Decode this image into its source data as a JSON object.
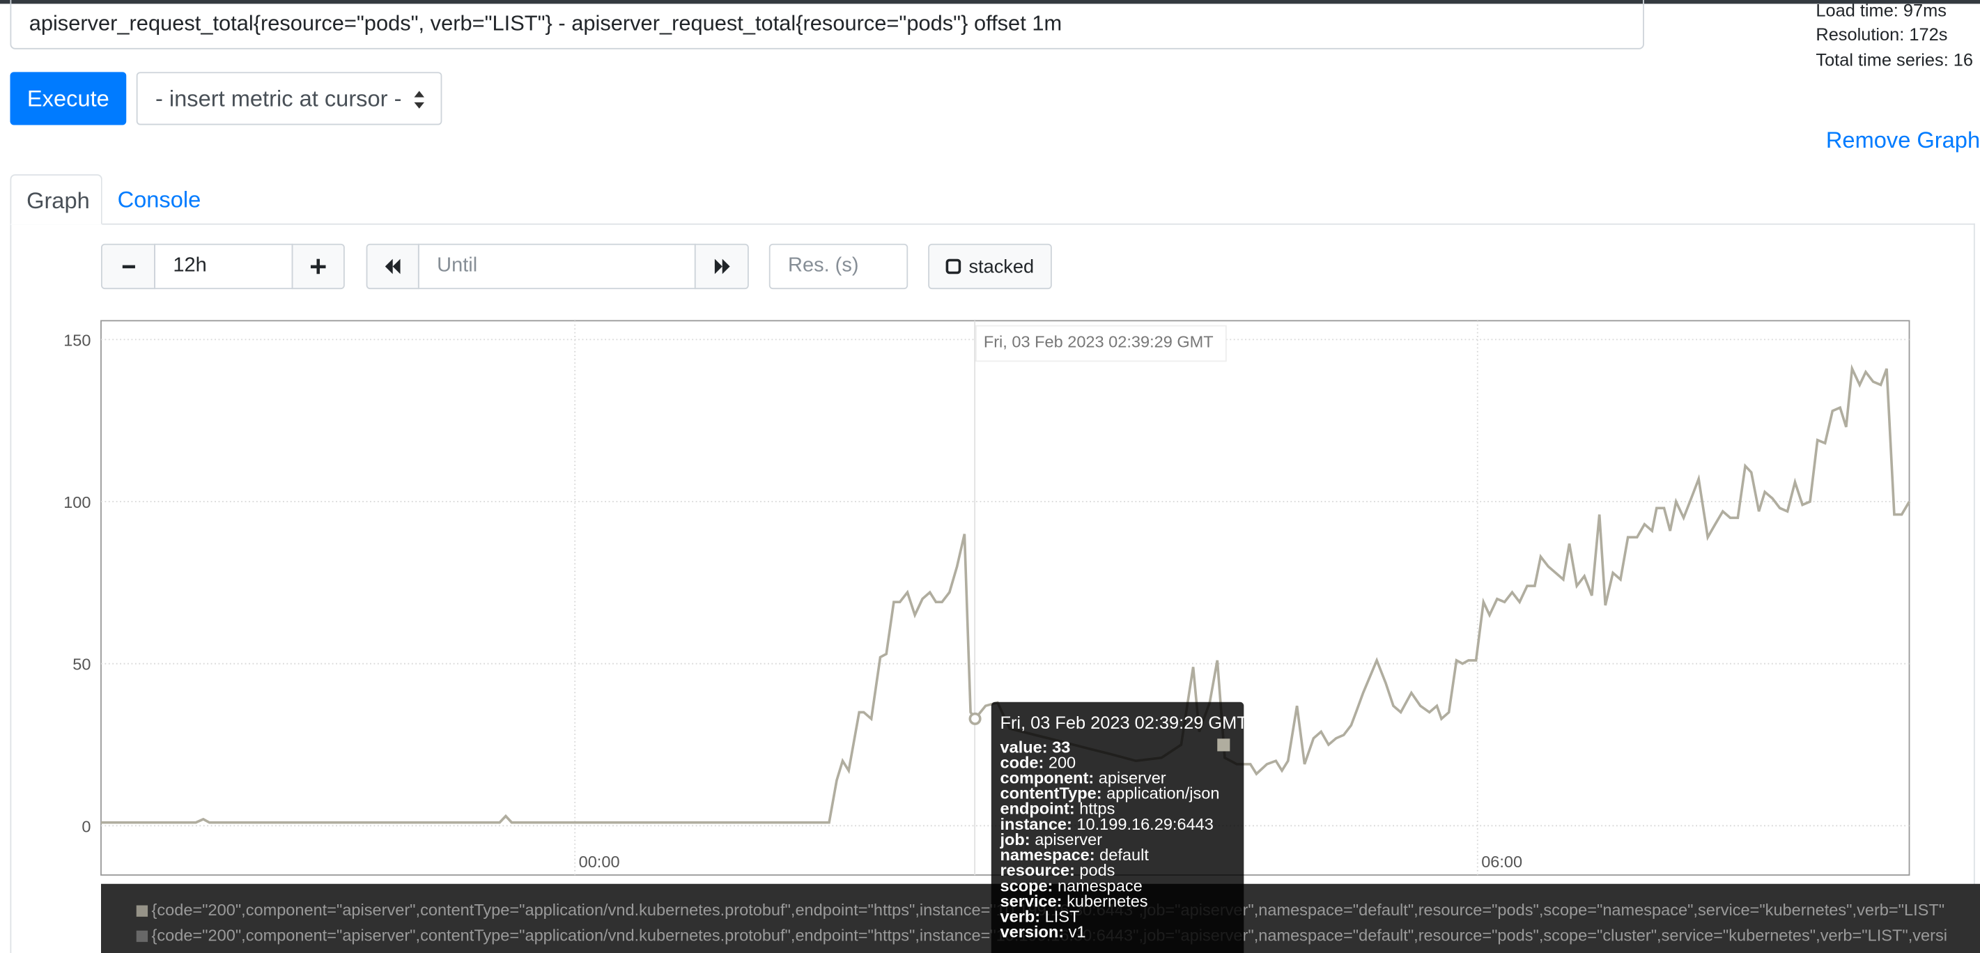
{
  "query": "apiserver_request_total{resource=\"pods\", verb=\"LIST\"} - apiserver_request_total{resource=\"pods\"} offset 1m",
  "stats": {
    "load_time": "Load time: 97ms",
    "resolution": "Resolution: 172s",
    "total_series": "Total time series: 16"
  },
  "execute": "Execute",
  "metric_select": "- insert metric at cursor -",
  "remove_graph": "Remove Graph",
  "tabs": [
    "Graph",
    "Console"
  ],
  "controls": {
    "range": "12h",
    "until": "Until",
    "resolution": "Res. (s)",
    "stacked": "stacked"
  },
  "chart_data": {
    "type": "line",
    "grid": true,
    "xlim": [
      -3.15,
      8.87
    ],
    "xticks": [
      {
        "value": 0,
        "label": "00:00"
      },
      {
        "value": 6,
        "label": "06:00"
      }
    ],
    "ylim": [
      -15.2,
      155.8
    ],
    "yticks": [
      0,
      50,
      100,
      150
    ],
    "crosshair_label": "Fri, 03 Feb 2023 02:39:29 GMT",
    "x": [
      -3.15,
      -2.52,
      -2.47,
      -2.43,
      -0.5,
      -0.46,
      -0.42,
      1.69,
      1.74,
      1.78,
      1.82,
      1.89,
      1.92,
      1.97,
      2.03,
      2.07,
      2.12,
      2.16,
      2.21,
      2.26,
      2.31,
      2.36,
      2.4,
      2.44,
      2.49,
      2.54,
      2.59,
      2.63,
      2.66,
      2.73,
      2.81,
      2.89,
      3.06,
      3.23,
      3.4,
      3.57,
      3.73,
      3.9,
      4.03,
      4.11,
      4.15,
      4.22,
      4.27,
      4.32,
      4.4,
      4.49,
      4.53,
      4.6,
      4.66,
      4.7,
      4.74,
      4.8,
      4.85,
      4.91,
      4.96,
      5.01,
      5.06,
      5.11,
      5.16,
      5.2,
      5.24,
      5.33,
      5.39,
      5.44,
      5.49,
      5.56,
      5.62,
      5.68,
      5.73,
      5.76,
      5.81,
      5.86,
      5.9,
      5.94,
      5.99,
      6.04,
      6.08,
      6.13,
      6.18,
      6.23,
      6.28,
      6.33,
      6.38,
      6.42,
      6.47,
      6.52,
      6.57,
      6.61,
      6.66,
      6.71,
      6.76,
      6.81,
      6.85,
      6.9,
      6.95,
      7.0,
      7.06,
      7.11,
      7.16,
      7.19,
      7.24,
      7.28,
      7.32,
      7.37,
      7.42,
      7.47,
      7.53,
      7.58,
      7.63,
      7.68,
      7.73,
      7.78,
      7.82,
      7.87,
      7.91,
      7.96,
      8.01,
      8.06,
      8.11,
      8.16,
      8.21,
      8.26,
      8.31,
      8.36,
      8.41,
      8.45,
      8.49,
      8.54,
      8.58,
      8.63,
      8.68,
      8.72,
      8.77,
      8.82,
      8.87
    ],
    "series": [
      {
        "name": "{code=\"200\",component=\"apiserver\",contentType=\"application/vnd.kubernetes.protobuf\",endpoint=\"https\",instance=\"10.199.16.30:6443\",job=\"apiserver\",namespace=\"default\",resource=\"pods\",scope=\"namespace\",service=\"kubernetes\",verb=\"LIST\"",
        "color": "#b0ad9f",
        "values": [
          1,
          1,
          2,
          1,
          1,
          3,
          1,
          1,
          14,
          20,
          17,
          35,
          35,
          33,
          52,
          53,
          69,
          69,
          72,
          65,
          70,
          72,
          69,
          69,
          72,
          80,
          90,
          35,
          33,
          37,
          38,
          30,
          28,
          26,
          24,
          22,
          20,
          21,
          25,
          49,
          29,
          38,
          51,
          21,
          19,
          19,
          16,
          19,
          20,
          17,
          20,
          37,
          19,
          27,
          29,
          25,
          27,
          28,
          31,
          36,
          41,
          51,
          44,
          37,
          35,
          41,
          37,
          35,
          37,
          33,
          35,
          51,
          50,
          51,
          51,
          69,
          65,
          70,
          69,
          72,
          69,
          74,
          74,
          83,
          80,
          78,
          76,
          87,
          74,
          77,
          71,
          96,
          68,
          78,
          76,
          89,
          89,
          93,
          91,
          98,
          98,
          91,
          100,
          95,
          101,
          107,
          89,
          93,
          97,
          95,
          95,
          111,
          109,
          97,
          103,
          101,
          98,
          97,
          106,
          99,
          100,
          119,
          118,
          128,
          129,
          123,
          141,
          136,
          140,
          137,
          136,
          141,
          96,
          96,
          100
        ]
      }
    ]
  },
  "legend_more": [
    "{code=\"200\",component=\"apiserver\",contentType=\"application/vnd.kubernetes.protobuf\",endpoint=\"https\",instance=\"10.199.16.30:6443\",job=\"apiserver\",namespace=\"default\",resource=\"pods\",scope=\"cluster\",service=\"kubernetes\",verb=\"LIST\",versi"
  ],
  "tooltip": {
    "title": "Fri, 03 Feb 2023 02:39:29 GMT",
    "fields": [
      {
        "key": "value:",
        "value": 33
      },
      {
        "key": "code:",
        "value": "200"
      },
      {
        "key": "component:",
        "value": "apiserver"
      },
      {
        "key": "contentType:",
        "value": "application/json"
      },
      {
        "key": "endpoint:",
        "value": "https"
      },
      {
        "key": "instance:",
        "value": "10.199.16.29:6443"
      },
      {
        "key": "job:",
        "value": "apiserver"
      },
      {
        "key": "namespace:",
        "value": "default"
      },
      {
        "key": "resource:",
        "value": "pods"
      },
      {
        "key": "scope:",
        "value": "namespace"
      },
      {
        "key": "service:",
        "value": "kubernetes"
      },
      {
        "key": "verb:",
        "value": "LIST"
      },
      {
        "key": "version:",
        "value": "v1"
      }
    ]
  }
}
